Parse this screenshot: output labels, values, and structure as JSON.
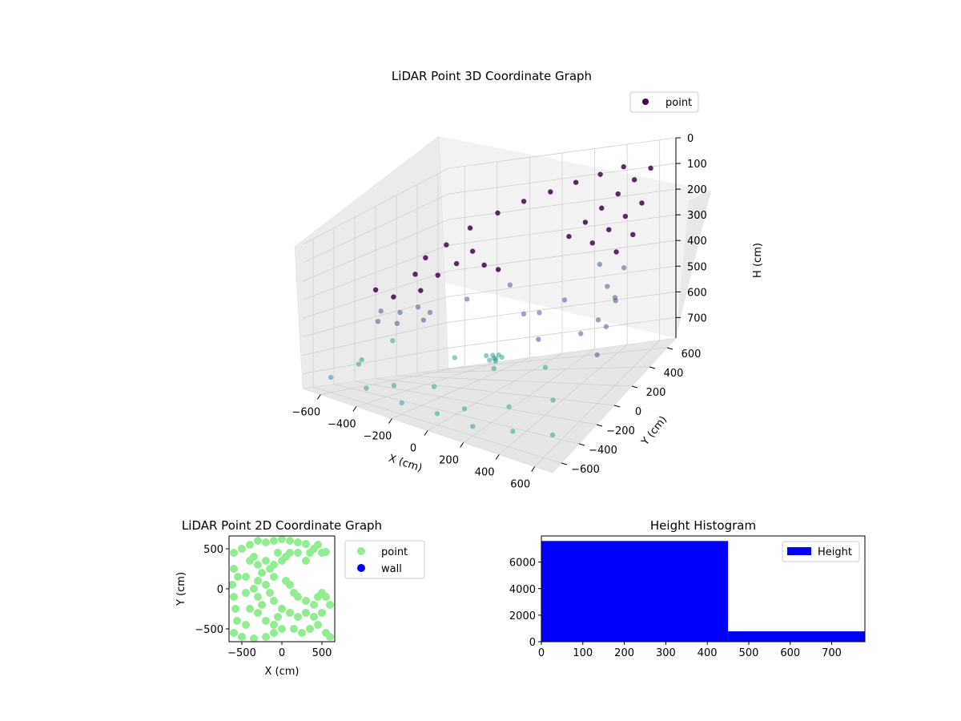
{
  "chart_data": [
    {
      "type": "scatter3d",
      "title": "LiDAR Point 3D Coordinate Graph",
      "xlabel": "X (cm)",
      "ylabel": "Y (cm)",
      "zlabel": "H (cm)",
      "xlim": [
        -700,
        700
      ],
      "ylim": [
        -700,
        700
      ],
      "zlim": [
        0,
        780
      ],
      "z_inverted": true,
      "x_ticks": [
        "−600",
        "−400",
        "−200",
        "0",
        "200",
        "400",
        "600"
      ],
      "y_ticks": [
        "−600",
        "−400",
        "−200",
        "0",
        "200",
        "400",
        "600"
      ],
      "z_ticks": [
        "0",
        "100",
        "200",
        "300",
        "400",
        "500",
        "600",
        "700"
      ],
      "x_tick_values": [
        -600,
        -400,
        -200,
        0,
        200,
        400,
        600
      ],
      "y_tick_values": [
        -600,
        -400,
        -200,
        0,
        200,
        400,
        600
      ],
      "z_tick_values": [
        0,
        100,
        200,
        300,
        400,
        500,
        600,
        700
      ],
      "legend": [
        "point"
      ],
      "legend_position": "top-right",
      "colormap": "viridis",
      "grid": true,
      "marker_color": "#440154",
      "series": [
        {
          "name": "point",
          "points": [
            [
              -450,
              -420,
              250
            ],
            [
              -400,
              -330,
              300
            ],
            [
              -350,
              -200,
              220
            ],
            [
              -360,
              -80,
              180
            ],
            [
              -320,
              60,
              160
            ],
            [
              -250,
              180,
              120
            ],
            [
              -150,
              290,
              90
            ],
            [
              -40,
              370,
              70
            ],
            [
              80,
              440,
              60
            ],
            [
              200,
              500,
              50
            ],
            [
              320,
              550,
              45
            ],
            [
              440,
              590,
              40
            ],
            [
              -420,
              -420,
              350
            ],
            [
              -380,
              -300,
              380
            ],
            [
              -330,
              -180,
              300
            ],
            [
              -300,
              -60,
              260
            ],
            [
              -260,
              60,
              240
            ],
            [
              -200,
              120,
              200
            ],
            [
              -120,
              100,
              250
            ],
            [
              -60,
              140,
              280
            ],
            [
              -460,
              -380,
              420
            ],
            [
              -420,
              -260,
              450
            ],
            [
              -380,
              -120,
              400
            ],
            [
              600,
              600,
              60
            ],
            [
              600,
              500,
              150
            ],
            [
              600,
              400,
              230
            ],
            [
              600,
              300,
              320
            ],
            [
              600,
              200,
              400
            ],
            [
              600,
              100,
              480
            ],
            [
              600,
              0,
              560
            ],
            [
              500,
              600,
              100
            ],
            [
              500,
              500,
              200
            ],
            [
              500,
              400,
              300
            ],
            [
              500,
              300,
              400
            ],
            [
              500,
              200,
              500
            ],
            [
              400,
              600,
              150
            ],
            [
              400,
              500,
              250
            ],
            [
              400,
              400,
              350
            ],
            [
              300,
              600,
              200
            ],
            [
              300,
              500,
              300
            ],
            [
              200,
              600,
              250
            ],
            [
              100,
              600,
              300
            ],
            [
              -600,
              -600,
              700
            ],
            [
              -600,
              -300,
              650
            ],
            [
              -600,
              0,
              600
            ],
            [
              -600,
              300,
              550
            ],
            [
              -500,
              -500,
              620
            ],
            [
              -400,
              -600,
              700
            ],
            [
              -300,
              -500,
              680
            ],
            [
              -200,
              -600,
              720
            ],
            [
              -100,
              -450,
              650
            ],
            [
              0,
              -600,
              720
            ],
            [
              100,
              -500,
              700
            ],
            [
              200,
              -600,
              730
            ],
            [
              300,
              -400,
              680
            ],
            [
              400,
              -550,
              720
            ],
            [
              500,
              -300,
              650
            ],
            [
              600,
              -500,
              710
            ],
            [
              -500,
              200,
              500
            ],
            [
              -400,
              400,
              480
            ],
            [
              -200,
              500,
              450
            ],
            [
              0,
              300,
              520
            ],
            [
              200,
              100,
              560
            ],
            [
              350,
              -100,
              600
            ],
            [
              450,
              100,
              520
            ],
            [
              550,
              300,
              460
            ],
            [
              -150,
              -150,
              600
            ],
            [
              50,
              -100,
              640
            ],
            [
              150,
              200,
              480
            ],
            [
              300,
              200,
              420
            ],
            [
              -50,
              0,
              620
            ],
            [
              -30,
              30,
              625
            ],
            [
              -10,
              10,
              630
            ],
            [
              10,
              -10,
              628
            ],
            [
              30,
              20,
              626
            ],
            [
              -20,
              -20,
              632
            ],
            [
              0,
              40,
              624
            ],
            [
              20,
              -30,
              630
            ]
          ]
        }
      ]
    },
    {
      "type": "scatter",
      "title": "LiDAR Point 2D Coordinate Graph",
      "xlabel": "X (cm)",
      "ylabel": "Y (cm)",
      "xlim": [
        -660,
        660
      ],
      "ylim": [
        -660,
        660
      ],
      "x_ticks": [
        "−500",
        "0",
        "500"
      ],
      "y_ticks": [
        "500",
        "0",
        "−500"
      ],
      "x_tick_values": [
        -500,
        0,
        500
      ],
      "y_tick_values": [
        500,
        0,
        -500
      ],
      "legend": [
        "point",
        "wall"
      ],
      "legend_position": "outside-right",
      "series": [
        {
          "name": "point",
          "color": "#90ee90",
          "points": [
            [
              -600,
              450
            ],
            [
              -500,
              500
            ],
            [
              -400,
              550
            ],
            [
              -300,
              600
            ],
            [
              -200,
              580
            ],
            [
              -100,
              600
            ],
            [
              0,
              620
            ],
            [
              100,
              600
            ],
            [
              200,
              580
            ],
            [
              300,
              560
            ],
            [
              400,
              500
            ],
            [
              500,
              450
            ],
            [
              550,
              460
            ],
            [
              -600,
              250
            ],
            [
              -550,
              150
            ],
            [
              -620,
              50
            ],
            [
              -600,
              -100
            ],
            [
              -580,
              -250
            ],
            [
              -560,
              -400
            ],
            [
              -600,
              -550
            ],
            [
              -500,
              -600
            ],
            [
              -350,
              -620
            ],
            [
              -200,
              -600
            ],
            [
              -100,
              -550
            ],
            [
              -350,
              400
            ],
            [
              -300,
              300
            ],
            [
              -250,
              200
            ],
            [
              -300,
              100
            ],
            [
              -350,
              0
            ],
            [
              -300,
              -100
            ],
            [
              -250,
              -200
            ],
            [
              -300,
              -300
            ],
            [
              -200,
              -400
            ],
            [
              -100,
              -450
            ],
            [
              0,
              -500
            ],
            [
              -200,
              350
            ],
            [
              -150,
              250
            ],
            [
              -100,
              150
            ],
            [
              -200,
              50
            ],
            [
              -150,
              -50
            ],
            [
              -100,
              -150
            ],
            [
              50,
              100
            ],
            [
              100,
              50
            ],
            [
              150,
              -50
            ],
            [
              200,
              -100
            ],
            [
              300,
              -150
            ],
            [
              400,
              -200
            ],
            [
              450,
              -100
            ],
            [
              500,
              -50
            ],
            [
              550,
              -100
            ],
            [
              600,
              -200
            ],
            [
              500,
              -300
            ],
            [
              400,
              -350
            ],
            [
              300,
              -300
            ],
            [
              200,
              -350
            ],
            [
              100,
              -300
            ],
            [
              0,
              -250
            ],
            [
              -50,
              -350
            ],
            [
              150,
              -500
            ],
            [
              250,
              -550
            ],
            [
              350,
              -500
            ],
            [
              450,
              -450
            ],
            [
              550,
              -550
            ],
            [
              600,
              -600
            ],
            [
              -450,
              -450
            ],
            [
              -400,
              -250
            ],
            [
              -450,
              -50
            ],
            [
              -450,
              150
            ],
            [
              -400,
              350
            ],
            [
              50,
              400
            ],
            [
              100,
              450
            ],
            [
              0,
              350
            ],
            [
              -50,
              450
            ],
            [
              -100,
              300
            ],
            [
              200,
              450
            ],
            [
              300,
              350
            ],
            [
              350,
              450
            ],
            [
              450,
              550
            ]
          ]
        },
        {
          "name": "wall",
          "color": "#0000ff",
          "points": []
        }
      ]
    },
    {
      "type": "bar",
      "title": "Height Histogram",
      "xlabel": "",
      "ylabel": "",
      "xlim": [
        0,
        780
      ],
      "ylim": [
        0,
        7970
      ],
      "x_ticks": [
        "0",
        "100",
        "200",
        "300",
        "400",
        "500",
        "600",
        "700"
      ],
      "y_ticks": [
        "0",
        "2000",
        "4000",
        "6000"
      ],
      "x_tick_values": [
        0,
        100,
        200,
        300,
        400,
        500,
        600,
        700
      ],
      "y_tick_values": [
        0,
        2000,
        4000,
        6000
      ],
      "legend": [
        "Height"
      ],
      "legend_position": "top-right",
      "color": "#0000ff",
      "bins": [
        {
          "from": 0,
          "to": 450,
          "count": 7590
        },
        {
          "from": 450,
          "to": 780,
          "count": 780
        }
      ]
    }
  ]
}
